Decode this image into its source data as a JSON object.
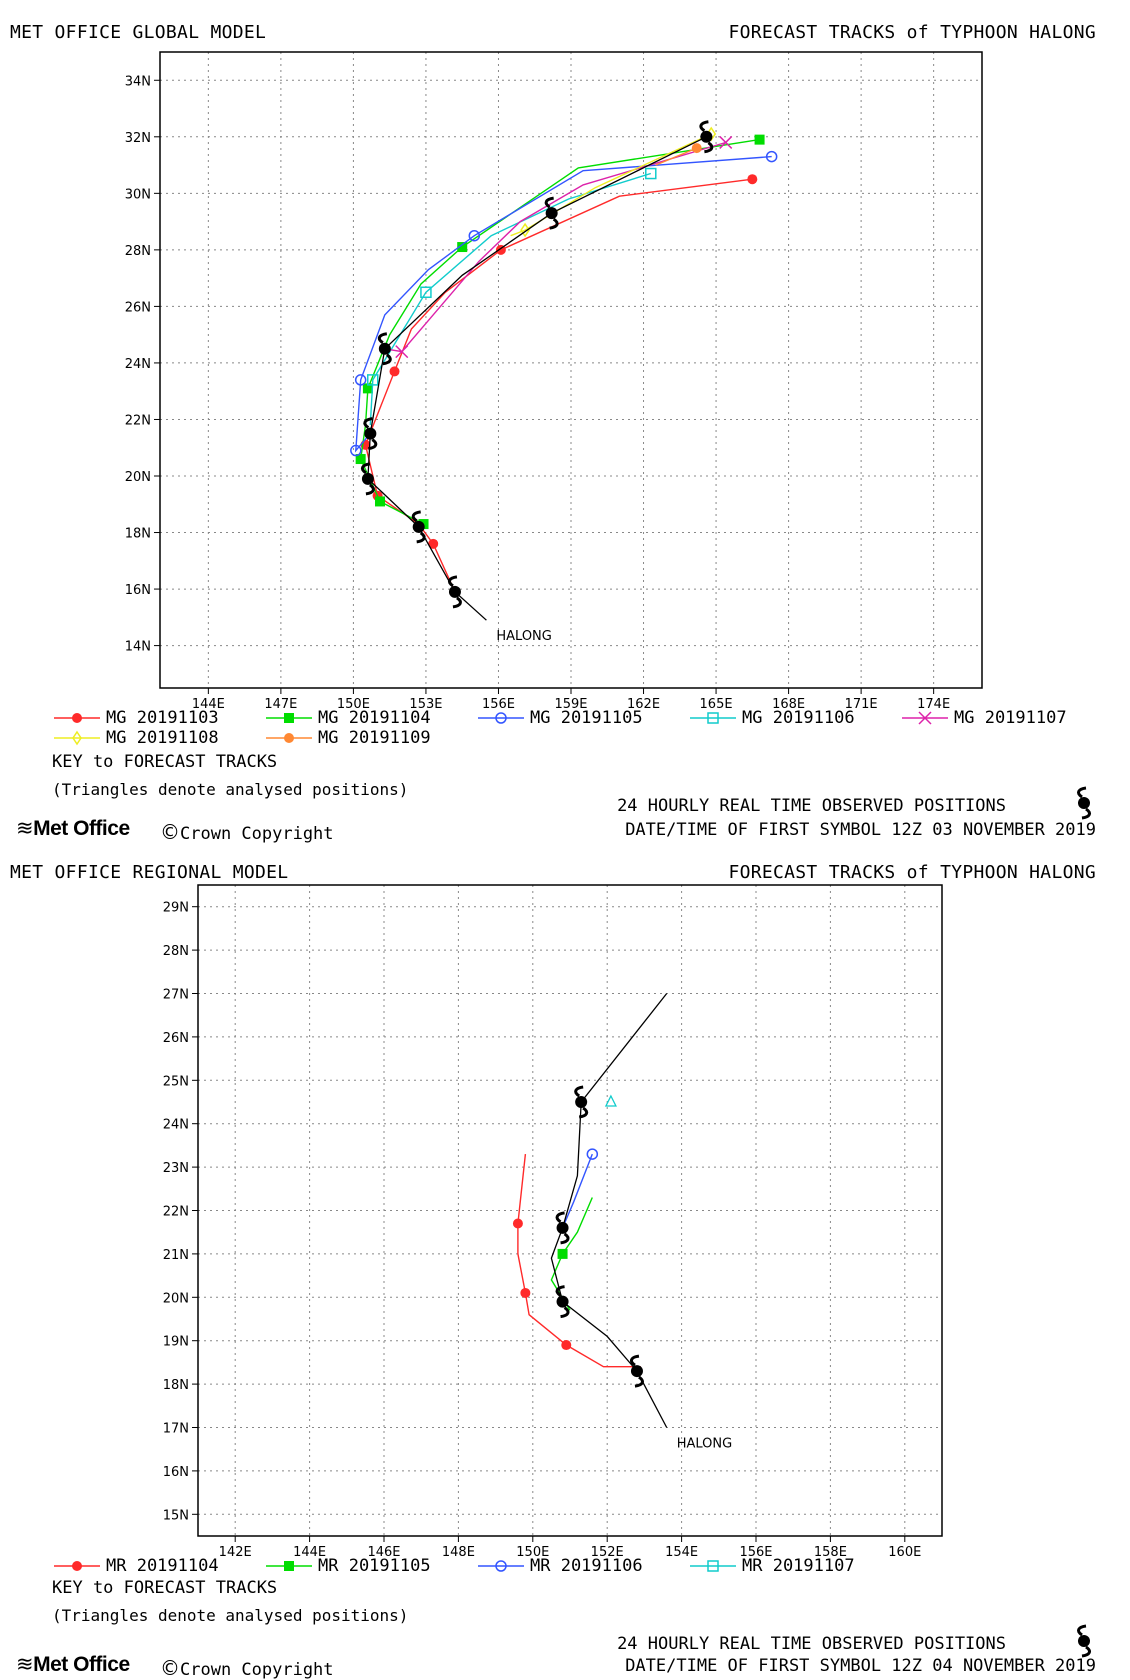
{
  "panels": [
    {
      "id": "global",
      "header_left": "MET OFFICE GLOBAL MODEL",
      "header_right": "FORECAST TRACKS of TYPHOON HALONG",
      "storm_label": "HALONG",
      "key_title": "KEY to FORECAST TRACKS",
      "key_note": "(Triangles denote analysed positions)",
      "observed_label": "24 HOURLY REAL TIME OBSERVED POSITIONS",
      "datetime_label": "DATE/TIME OF FIRST SYMBOL 12Z 03 NOVEMBER 2019",
      "logo_text": "Met Office",
      "copyright_text": "Crown Copyright",
      "lon_range": [
        142,
        176
      ],
      "lat_range": [
        12.5,
        35
      ],
      "lon_ticks": [
        "144E",
        "147E",
        "150E",
        "153E",
        "156E",
        "159E",
        "162E",
        "165E",
        "168E",
        "171E",
        "174E"
      ],
      "lon_tick_values": [
        144,
        147,
        150,
        153,
        156,
        159,
        162,
        165,
        168,
        171,
        174
      ],
      "lat_ticks": [
        "14N",
        "16N",
        "18N",
        "20N",
        "22N",
        "24N",
        "26N",
        "28N",
        "30N",
        "32N",
        "34N"
      ],
      "lat_tick_values": [
        14,
        16,
        18,
        20,
        22,
        24,
        26,
        28,
        30,
        32,
        34
      ],
      "grid": true,
      "observed_track": [
        [
          155.5,
          14.9
        ],
        [
          154.2,
          15.9
        ],
        [
          152.7,
          18.2
        ],
        [
          150.6,
          19.9
        ],
        [
          150.7,
          21.5
        ],
        [
          151.3,
          24.5
        ],
        [
          154.5,
          27.1
        ],
        [
          158.2,
          29.3
        ],
        [
          164.6,
          32.0
        ]
      ],
      "observed_symbols": [
        [
          154.2,
          15.9
        ],
        [
          152.7,
          18.2
        ],
        [
          150.6,
          19.9
        ],
        [
          150.7,
          21.5
        ],
        [
          151.3,
          24.5
        ],
        [
          158.2,
          29.3
        ],
        [
          164.6,
          32.0
        ]
      ],
      "series": [
        {
          "name": "MG 20191103",
          "color": "#ff2a2a",
          "marker": "filled-circle",
          "points": [
            [
              154.2,
              15.9
            ],
            [
              153.3,
              17.6
            ],
            [
              151.0,
              19.3
            ],
            [
              150.5,
              21.1
            ],
            [
              151.7,
              23.7
            ],
            [
              156.1,
              28.0
            ],
            [
              166.5,
              30.5
            ]
          ],
          "path": [
            [
              154.2,
              15.9
            ],
            [
              153.3,
              17.6
            ],
            [
              152.7,
              18.3
            ],
            [
              151.0,
              19.3
            ],
            [
              150.5,
              21.1
            ],
            [
              151.7,
              23.7
            ],
            [
              152.4,
              25.2
            ],
            [
              153.8,
              26.5
            ],
            [
              156.1,
              28.0
            ],
            [
              161.0,
              29.9
            ],
            [
              166.5,
              30.5
            ]
          ]
        },
        {
          "name": "MG 20191104",
          "color": "#00dd00",
          "marker": "filled-square",
          "points": [
            [
              152.9,
              18.3
            ],
            [
              151.1,
              19.1
            ],
            [
              150.3,
              20.6
            ],
            [
              150.6,
              23.1
            ],
            [
              154.5,
              28.1
            ],
            [
              166.8,
              31.9
            ]
          ],
          "path": [
            [
              152.9,
              18.3
            ],
            [
              151.1,
              19.1
            ],
            [
              150.3,
              20.6
            ],
            [
              150.5,
              21.8
            ],
            [
              150.6,
              23.1
            ],
            [
              151.5,
              25.0
            ],
            [
              152.8,
              26.8
            ],
            [
              154.5,
              28.1
            ],
            [
              159.3,
              30.9
            ],
            [
              166.8,
              31.9
            ]
          ]
        },
        {
          "name": "MG 20191105",
          "color": "#3355ff",
          "marker": "open-circle",
          "points": [
            [
              150.1,
              20.9
            ],
            [
              150.3,
              23.4
            ],
            [
              155.0,
              28.5
            ],
            [
              167.3,
              31.3
            ]
          ],
          "path": [
            [
              150.7,
              21.5
            ],
            [
              150.1,
              20.9
            ],
            [
              150.3,
              23.4
            ],
            [
              151.3,
              25.7
            ],
            [
              153.1,
              27.3
            ],
            [
              155.0,
              28.5
            ],
            [
              159.5,
              30.8
            ],
            [
              167.3,
              31.3
            ]
          ]
        },
        {
          "name": "MG 20191106",
          "color": "#11cccc",
          "marker": "open-square",
          "points": [
            [
              150.8,
              23.4
            ],
            [
              153.0,
              26.5
            ],
            [
              162.3,
              30.7
            ]
          ],
          "path": [
            [
              150.7,
              21.8
            ],
            [
              150.8,
              23.4
            ],
            [
              153.0,
              26.5
            ],
            [
              155.7,
              28.5
            ],
            [
              158.9,
              29.8
            ],
            [
              162.3,
              30.7
            ]
          ]
        },
        {
          "name": "MG 20191107",
          "color": "#dd22aa",
          "marker": "cross",
          "points": [
            [
              152.0,
              24.4
            ],
            [
              165.4,
              31.8
            ]
          ],
          "path": [
            [
              151.3,
              24.5
            ],
            [
              152.0,
              24.4
            ],
            [
              153.6,
              26.0
            ],
            [
              155.2,
              27.6
            ],
            [
              156.9,
              29.0
            ],
            [
              159.5,
              30.3
            ],
            [
              165.4,
              31.8
            ]
          ]
        },
        {
          "name": "MG 20191108",
          "color": "#eeee22",
          "marker": "open-diamond",
          "points": [
            [
              157.1,
              28.7
            ],
            [
              164.8,
              32.1
            ]
          ],
          "path": [
            [
              156.5,
              28.5
            ],
            [
              157.1,
              28.7
            ],
            [
              160.0,
              30.2
            ],
            [
              164.8,
              32.1
            ]
          ]
        },
        {
          "name": "MG 20191109",
          "color": "#ff8833",
          "marker": "filled-circle",
          "points": [
            [
              164.2,
              31.6
            ]
          ],
          "path": [
            [
              162.5,
              31.0
            ],
            [
              164.2,
              31.6
            ]
          ]
        }
      ]
    },
    {
      "id": "regional",
      "header_left": "MET OFFICE REGIONAL MODEL",
      "header_right": "FORECAST TRACKS of TYPHOON HALONG",
      "storm_label": "HALONG",
      "key_title": "KEY to FORECAST TRACKS",
      "key_note": "(Triangles denote analysed positions)",
      "observed_label": "24 HOURLY REAL TIME OBSERVED POSITIONS",
      "datetime_label": "DATE/TIME OF FIRST SYMBOL 12Z 04 NOVEMBER 2019",
      "logo_text": "Met Office",
      "copyright_text": "Crown Copyright",
      "lon_range": [
        141,
        161
      ],
      "lat_range": [
        14.5,
        29.5
      ],
      "lon_ticks": [
        "142E",
        "144E",
        "146E",
        "148E",
        "150E",
        "152E",
        "154E",
        "156E",
        "158E",
        "160E"
      ],
      "lon_tick_values": [
        142,
        144,
        146,
        148,
        150,
        152,
        154,
        156,
        158,
        160
      ],
      "lat_ticks": [
        "15N",
        "16N",
        "17N",
        "18N",
        "19N",
        "20N",
        "21N",
        "22N",
        "23N",
        "24N",
        "25N",
        "26N",
        "27N",
        "28N",
        "29N"
      ],
      "lat_tick_values": [
        15,
        16,
        17,
        18,
        19,
        20,
        21,
        22,
        23,
        24,
        25,
        26,
        27,
        28,
        29
      ],
      "grid": true,
      "observed_track": [
        [
          153.6,
          17.0
        ],
        [
          152.8,
          18.3
        ],
        [
          152.0,
          19.1
        ],
        [
          150.8,
          19.9
        ],
        [
          150.5,
          20.9
        ],
        [
          150.8,
          21.6
        ],
        [
          151.2,
          22.8
        ],
        [
          151.3,
          24.5
        ],
        [
          153.6,
          27.0
        ]
      ],
      "observed_symbols": [
        [
          152.8,
          18.3
        ],
        [
          150.8,
          19.9
        ],
        [
          150.8,
          21.6
        ],
        [
          151.3,
          24.5
        ]
      ],
      "series": [
        {
          "name": "MR 20191104",
          "color": "#ff2a2a",
          "marker": "filled-circle",
          "points": [
            [
              150.9,
              18.9
            ],
            [
              149.8,
              20.1
            ],
            [
              149.6,
              21.7
            ]
          ],
          "path": [
            [
              152.9,
              18.4
            ],
            [
              151.9,
              18.4
            ],
            [
              150.9,
              18.9
            ],
            [
              149.9,
              19.6
            ],
            [
              149.8,
              20.1
            ],
            [
              149.6,
              21.0
            ],
            [
              149.6,
              21.7
            ],
            [
              149.8,
              23.3
            ]
          ]
        },
        {
          "name": "MR 20191105",
          "color": "#00dd00",
          "marker": "filled-square",
          "points": [
            [
              150.8,
              21.0
            ]
          ],
          "path": [
            [
              151.0,
              19.7
            ],
            [
              150.5,
              20.4
            ],
            [
              150.8,
              21.0
            ],
            [
              151.2,
              21.5
            ],
            [
              151.6,
              22.3
            ]
          ]
        },
        {
          "name": "MR 20191106",
          "color": "#3355ff",
          "marker": "open-circle",
          "points": [
            [
              151.6,
              23.3
            ]
          ],
          "path": [
            [
              150.8,
              21.6
            ],
            [
              151.1,
              22.2
            ],
            [
              151.6,
              23.3
            ]
          ]
        },
        {
          "name": "MR 20191107",
          "color": "#11cccc",
          "marker": "open-square",
          "points": [],
          "path": []
        }
      ],
      "analysed_positions": [
        {
          "color": "#11cccc",
          "pos": [
            152.1,
            24.5
          ]
        }
      ]
    }
  ]
}
